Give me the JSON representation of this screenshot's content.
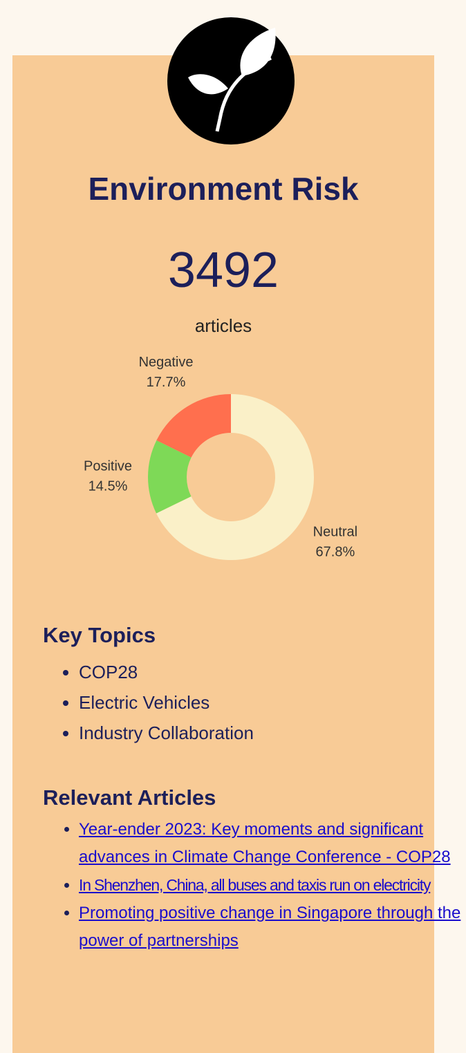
{
  "header": {
    "title": "Environment Risk",
    "count": "3492",
    "count_label": "articles"
  },
  "chart_data": {
    "type": "donut",
    "categories": [
      "Neutral",
      "Positive",
      "Negative"
    ],
    "values": [
      67.8,
      14.5,
      17.7
    ],
    "value_labels": [
      "67.8%",
      "14.5%",
      "17.7%"
    ],
    "colors": [
      "#faf0c8",
      "#7ed957",
      "#ff6f4e"
    ]
  },
  "key_topics": {
    "title": "Key Topics",
    "items": [
      "COP28",
      "Electric Vehicles",
      "Industry Collaboration"
    ]
  },
  "articles": {
    "title": "Relevant Articles",
    "items": [
      "Year-ender 2023: Key moments and significant advances in Climate Change Conference - COP28",
      "In Shenzhen, China, all buses and taxis run on electricity",
      "Promoting positive change in Singapore through the power of partnerships"
    ]
  }
}
